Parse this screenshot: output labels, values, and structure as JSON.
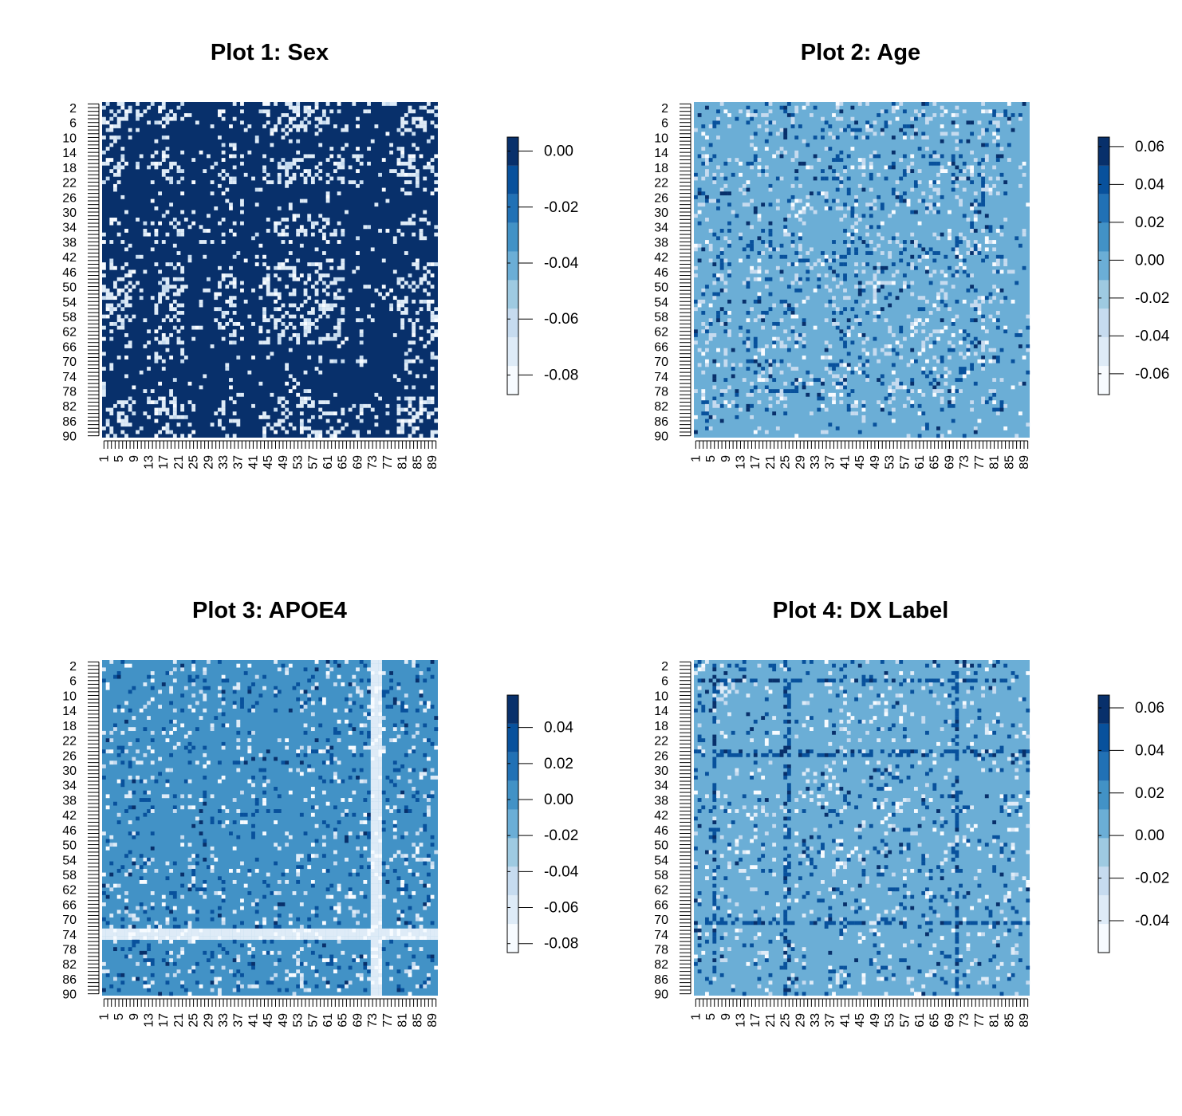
{
  "figure": {
    "palette": [
      "#f7fbff",
      "#deebf7",
      "#c6dbef",
      "#9ecae1",
      "#6baed6",
      "#4292c6",
      "#2171b5",
      "#08519c",
      "#08306b"
    ]
  },
  "chart_data": [
    {
      "type": "heatmap",
      "title": "Plot 1: Sex",
      "xlabel": "",
      "ylabel": "",
      "n": 90,
      "x_tick_labels": [
        "1",
        "5",
        "9",
        "13",
        "17",
        "21",
        "25",
        "29",
        "33",
        "37",
        "41",
        "45",
        "49",
        "53",
        "57",
        "61",
        "65",
        "69",
        "73",
        "77",
        "81",
        "85",
        "89"
      ],
      "y_tick_labels": [
        "2",
        "6",
        "10",
        "14",
        "18",
        "22",
        "26",
        "30",
        "34",
        "38",
        "42",
        "46",
        "50",
        "54",
        "58",
        "62",
        "66",
        "70",
        "74",
        "78",
        "82",
        "86",
        "90"
      ],
      "colorbar": {
        "ticks": [
          "0.00",
          "-0.02",
          "-0.04",
          "-0.06",
          "-0.08"
        ],
        "tick_values": [
          0.0,
          -0.02,
          -0.04,
          -0.06,
          -0.08
        ],
        "range": [
          -0.087,
          0.005
        ]
      },
      "base_value": 0.003,
      "base_color": "#08306b",
      "off_value": -0.075,
      "off_color": "#deebf7",
      "off_density": 0.05,
      "off_rows": [
        3,
        4,
        6,
        7,
        8,
        15,
        16,
        17,
        18,
        20,
        21,
        22,
        47,
        48,
        49,
        51,
        52,
        53,
        54,
        55,
        56,
        58,
        59,
        60,
        61,
        62,
        63,
        64,
        65,
        69,
        80,
        81,
        82,
        83,
        84,
        85,
        86,
        87,
        88,
        89
      ],
      "off_cols": [
        1,
        2,
        3,
        5,
        6,
        15,
        16,
        17,
        18,
        19,
        21,
        22,
        32,
        33,
        35,
        36,
        44,
        45,
        47,
        48,
        49,
        50,
        51,
        52,
        53,
        54,
        55,
        56,
        57,
        58,
        59,
        60,
        61,
        62,
        63,
        64,
        69,
        70,
        80,
        81,
        82,
        83,
        84,
        85,
        86,
        87,
        88,
        89,
        90
      ],
      "off_density_bands": 0.32
    },
    {
      "type": "heatmap",
      "title": "Plot 2: Age",
      "xlabel": "",
      "ylabel": "",
      "n": 90,
      "x_tick_labels": [
        "1",
        "5",
        "9",
        "13",
        "17",
        "21",
        "25",
        "29",
        "33",
        "37",
        "41",
        "45",
        "49",
        "53",
        "57",
        "61",
        "65",
        "69",
        "73",
        "77",
        "81",
        "85",
        "89"
      ],
      "y_tick_labels": [
        "2",
        "6",
        "10",
        "14",
        "18",
        "22",
        "26",
        "30",
        "34",
        "38",
        "42",
        "46",
        "50",
        "54",
        "58",
        "62",
        "66",
        "70",
        "74",
        "78",
        "82",
        "86",
        "90"
      ],
      "colorbar": {
        "ticks": [
          "0.06",
          "0.04",
          "0.02",
          "0.00",
          "-0.02",
          "-0.04",
          "-0.06"
        ],
        "tick_values": [
          0.06,
          0.04,
          0.02,
          0.0,
          -0.02,
          -0.04,
          -0.06
        ],
        "range": [
          -0.071,
          0.065
        ]
      },
      "base_value": -0.005,
      "base_color": "#6baed6",
      "off_value": -0.05,
      "off_color": "#c6dbef",
      "off_value_high": 0.045,
      "off_color_high": "#08519c",
      "off_density": 0.07,
      "off_rows": [
        6,
        7,
        8,
        9,
        15,
        16,
        19,
        24,
        25,
        26,
        27,
        28,
        29,
        30,
        31,
        42,
        43,
        44,
        51,
        56,
        57,
        59,
        60,
        61,
        62,
        63,
        64,
        65,
        66,
        67,
        68,
        69,
        71,
        75,
        76,
        77,
        78,
        79,
        80,
        81
      ],
      "off_cols": [
        1,
        2,
        3,
        4,
        5,
        6,
        7,
        8,
        9,
        10,
        17,
        18,
        19,
        20,
        21,
        24,
        25,
        26,
        27,
        28,
        29,
        30,
        31,
        36,
        37,
        38,
        39,
        40,
        41,
        45,
        46,
        47,
        48,
        49,
        50,
        53,
        54,
        55,
        56,
        57,
        61,
        62,
        63,
        64,
        65,
        66,
        70,
        71,
        72,
        73,
        74,
        75,
        76,
        77,
        78,
        79,
        80,
        81,
        82
      ],
      "off_density_bands": 0.25
    },
    {
      "type": "heatmap",
      "title": "Plot 3: APOE4",
      "xlabel": "",
      "ylabel": "",
      "n": 90,
      "x_tick_labels": [
        "1",
        "5",
        "9",
        "13",
        "17",
        "21",
        "25",
        "29",
        "33",
        "37",
        "41",
        "45",
        "49",
        "53",
        "57",
        "61",
        "65",
        "69",
        "73",
        "77",
        "81",
        "85",
        "89"
      ],
      "y_tick_labels": [
        "2",
        "6",
        "10",
        "14",
        "18",
        "22",
        "26",
        "30",
        "34",
        "38",
        "42",
        "46",
        "50",
        "54",
        "58",
        "62",
        "66",
        "70",
        "74",
        "78",
        "82",
        "86",
        "90"
      ],
      "colorbar": {
        "ticks": [
          "0.04",
          "0.02",
          "0.00",
          "-0.02",
          "-0.04",
          "-0.06",
          "-0.08"
        ],
        "tick_values": [
          0.04,
          0.02,
          0.0,
          -0.02,
          -0.04,
          -0.06,
          -0.08
        ],
        "range": [
          -0.085,
          0.058
        ]
      },
      "base_value": 0.008,
      "base_color": "#4292c6",
      "off_value": -0.065,
      "off_color": "#deebf7",
      "off_value_high": 0.045,
      "off_color_high": "#08519c",
      "off_density": 0.05,
      "stripe_rows": [
        73,
        74
      ],
      "stripe_cols": [
        74,
        75
      ],
      "off_rows": [
        1,
        2,
        3,
        4,
        5,
        8,
        9,
        12,
        18,
        19,
        24,
        25,
        33,
        36,
        37,
        38,
        41,
        54,
        55,
        56,
        62,
        71,
        72,
        73,
        74,
        75,
        76,
        78,
        79,
        80,
        81,
        82,
        83
      ],
      "off_cols": [
        1,
        2,
        3,
        6,
        7,
        9,
        10,
        12,
        13,
        14,
        19,
        20,
        22,
        24,
        26,
        28,
        30,
        32,
        36,
        37,
        40,
        42,
        44,
        47,
        48,
        50,
        53,
        54,
        55,
        56,
        57,
        58,
        60,
        61,
        62,
        63,
        64,
        66,
        67,
        68,
        69,
        70,
        72,
        73,
        74,
        75,
        76,
        77,
        78,
        79,
        80,
        81,
        82,
        83,
        84,
        85,
        86,
        87,
        88,
        89
      ],
      "off_density_bands": 0.22
    },
    {
      "type": "heatmap",
      "title": "Plot 4: DX Label",
      "xlabel": "",
      "ylabel": "",
      "n": 90,
      "x_tick_labels": [
        "1",
        "5",
        "9",
        "13",
        "17",
        "21",
        "25",
        "29",
        "33",
        "37",
        "41",
        "45",
        "49",
        "53",
        "57",
        "61",
        "65",
        "69",
        "73",
        "77",
        "81",
        "85",
        "89"
      ],
      "y_tick_labels": [
        "2",
        "6",
        "10",
        "14",
        "18",
        "22",
        "26",
        "30",
        "34",
        "38",
        "42",
        "46",
        "50",
        "54",
        "58",
        "62",
        "66",
        "70",
        "74",
        "78",
        "82",
        "86",
        "90"
      ],
      "colorbar": {
        "ticks": [
          "0.06",
          "0.04",
          "0.02",
          "0.00",
          "-0.02",
          "-0.04"
        ],
        "tick_values": [
          0.06,
          0.04,
          0.02,
          0.0,
          -0.02,
          -0.04
        ],
        "range": [
          -0.055,
          0.066
        ]
      },
      "base_value": -0.005,
      "base_color": "#6baed6",
      "off_value": -0.045,
      "off_color": "#deebf7",
      "off_value_high": 0.045,
      "off_color_high": "#08519c",
      "off_density": 0.06,
      "dark_rows": [
        6,
        26,
        71
      ],
      "dark_cols": [
        6,
        25,
        71
      ],
      "off_rows": [
        6,
        10,
        14,
        17,
        26,
        30,
        36,
        37,
        38,
        39,
        40,
        45,
        46,
        51,
        52,
        53,
        54,
        55,
        56,
        62,
        63,
        64,
        71,
        77,
        78,
        81,
        82,
        83,
        85
      ],
      "off_cols": [
        1,
        2,
        4,
        6,
        8,
        14,
        17,
        20,
        22,
        25,
        26,
        28,
        30,
        31,
        32,
        36,
        37,
        38,
        39,
        40,
        41,
        45,
        46,
        50,
        51,
        52,
        53,
        54,
        55,
        56,
        57,
        58,
        62,
        63,
        64,
        65,
        70,
        71,
        72,
        73,
        74,
        79,
        80,
        83,
        84,
        85,
        86,
        87
      ],
      "off_density_bands": 0.2
    }
  ]
}
